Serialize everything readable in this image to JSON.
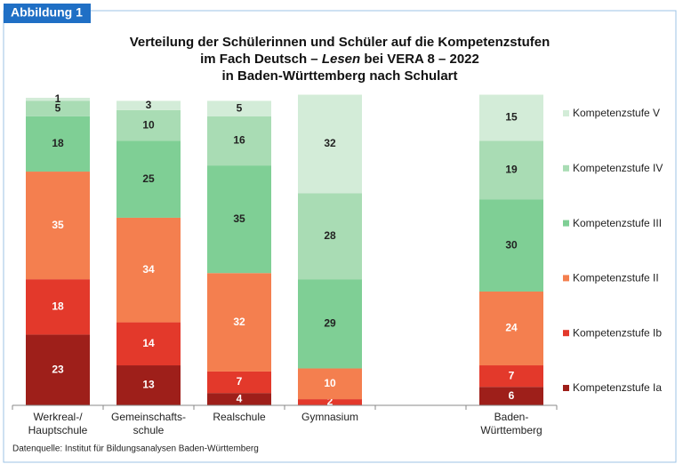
{
  "figure_label": "Abbildung 1",
  "source": "Datenquelle: Institut für Bildungsanalysen Baden-Württemberg",
  "chart_data": {
    "type": "stacked-bar",
    "title": [
      "Verteilung der Schülerinnen und Schüler auf die Kompetenzstufen",
      "im Fach Deutsch – ",
      "Lesen",
      " bei VERA 8 – 2022",
      "in Baden-Württemberg nach Schulart"
    ],
    "categories": [
      [
        "Werkreal-/",
        "Hauptschule"
      ],
      [
        "Gemeinschafts-",
        "schule"
      ],
      [
        "Realschule"
      ],
      [
        "Gymnasium"
      ],
      null,
      [
        "Baden-",
        "Württemberg"
      ]
    ],
    "ylim": [
      0,
      100
    ],
    "series": [
      {
        "name": "Kompetenzstufe Ia",
        "color": "#9e1f1a",
        "values": [
          23,
          13,
          4,
          null,
          null,
          6
        ]
      },
      {
        "name": "Kompetenzstufe Ib",
        "color": "#e3392b",
        "values": [
          18,
          14,
          7,
          2,
          null,
          7
        ]
      },
      {
        "name": "Kompetenzstufe II",
        "color": "#f47f4f",
        "values": [
          35,
          34,
          32,
          10,
          null,
          24
        ]
      },
      {
        "name": "Kompetenzstufe III",
        "color": "#7fcf95",
        "values": [
          18,
          25,
          35,
          29,
          null,
          30
        ]
      },
      {
        "name": "Kompetenzstufe IV",
        "color": "#a9dcb4",
        "values": [
          5,
          10,
          16,
          28,
          null,
          19
        ]
      },
      {
        "name": "Kompetenzstufe V",
        "color": "#d3ecd8",
        "values": [
          1,
          3,
          5,
          32,
          null,
          15
        ]
      }
    ]
  }
}
